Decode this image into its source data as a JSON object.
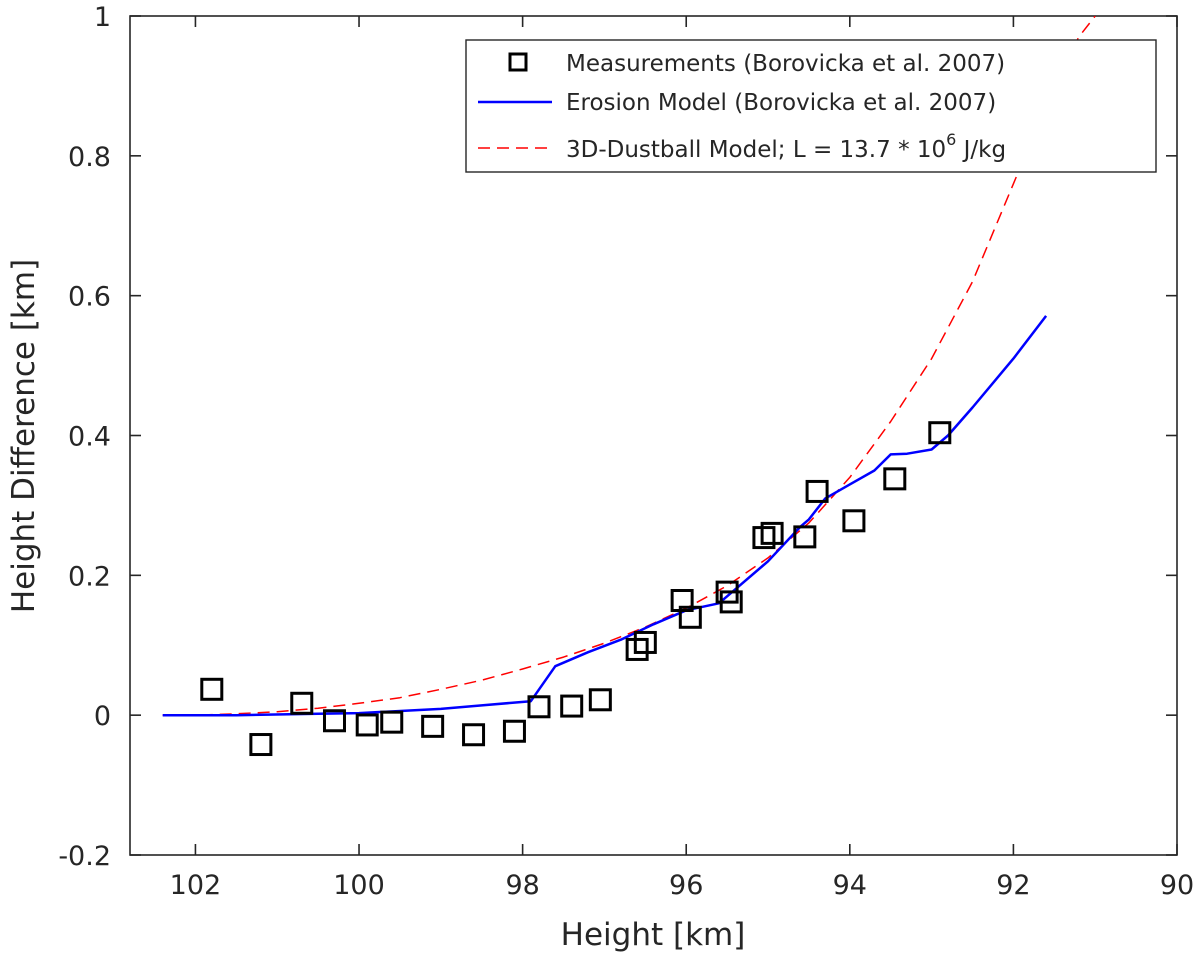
{
  "chart_data": {
    "type": "line",
    "title": "",
    "xlabel": "Height [km]",
    "ylabel": "Height Difference [km]",
    "xlim": [
      102.8,
      90
    ],
    "x_reversed": true,
    "ylim": [
      -0.2,
      1.0
    ],
    "grid": false,
    "legend_position": "top-right",
    "xticks": [
      102,
      100,
      98,
      96,
      94,
      92,
      90
    ],
    "yticks": [
      -0.2,
      0,
      0.2,
      0.4,
      0.6,
      0.8,
      1.0
    ],
    "xtick_labels": [
      "102",
      "100",
      "98",
      "96",
      "94",
      "92",
      "90"
    ],
    "ytick_labels": [
      "-0.2",
      "0",
      "0.2",
      "0.4",
      "0.6",
      "0.8",
      "1"
    ],
    "series": [
      {
        "name": "Measurements (Borovicka et al. 2007)",
        "style": "markers",
        "marker": "square",
        "color": "#000000",
        "x": [
          101.8,
          101.2,
          100.7,
          100.3,
          99.9,
          99.6,
          99.1,
          98.6,
          98.1,
          97.8,
          97.4,
          97.05,
          96.6,
          96.5,
          96.05,
          95.95,
          95.5,
          95.45,
          95.05,
          94.95,
          94.55,
          94.4,
          93.95,
          93.45,
          92.9
        ],
        "y": [
          0.037,
          -0.042,
          0.017,
          -0.008,
          -0.014,
          -0.01,
          -0.016,
          -0.028,
          -0.023,
          0.012,
          0.013,
          0.022,
          0.094,
          0.104,
          0.164,
          0.14,
          0.176,
          0.162,
          0.254,
          0.26,
          0.255,
          0.32,
          0.278,
          0.338,
          0.404
        ]
      },
      {
        "name": "Erosion Model (Borovicka et al. 2007)",
        "style": "solid",
        "color": "#0000ff",
        "x": [
          102.4,
          101.5,
          100.5,
          100.0,
          99.0,
          98.5,
          97.9,
          97.6,
          97.2,
          96.8,
          96.4,
          96.0,
          95.6,
          95.4,
          95.0,
          94.6,
          94.5,
          94.3,
          94.0,
          93.7,
          93.5,
          93.3,
          93.0,
          92.8,
          92.5,
          92.0,
          91.6
        ],
        "y": [
          0.0,
          0.0,
          0.002,
          0.003,
          0.009,
          0.014,
          0.02,
          0.07,
          0.09,
          0.108,
          0.13,
          0.15,
          0.16,
          0.18,
          0.22,
          0.27,
          0.28,
          0.31,
          0.33,
          0.35,
          0.373,
          0.374,
          0.38,
          0.4,
          0.44,
          0.51,
          0.571
        ]
      },
      {
        "name": "3D-Dustball Model; L = 13.7 * 10^6 J/kg",
        "style": "dashed",
        "color": "#ff0000",
        "x": [
          102.4,
          102.0,
          101.5,
          101.0,
          100.5,
          100.0,
          99.5,
          99.0,
          98.5,
          98.0,
          97.5,
          97.0,
          96.5,
          96.0,
          95.5,
          95.0,
          94.5,
          94.0,
          93.5,
          93.0,
          92.5,
          92.0,
          91.5,
          91.2,
          91.0
        ],
        "y": [
          0.0,
          0.0,
          0.002,
          0.005,
          0.01,
          0.017,
          0.025,
          0.037,
          0.05,
          0.066,
          0.083,
          0.103,
          0.126,
          0.153,
          0.185,
          0.225,
          0.275,
          0.34,
          0.42,
          0.51,
          0.62,
          0.76,
          0.9,
          0.97,
          1.0
        ]
      }
    ],
    "legend": {
      "entries": [
        {
          "label": "Measurements (Borovicka et al. 2007)"
        },
        {
          "label": "Erosion Model (Borovicka et al. 2007)"
        },
        {
          "label_main": "3D-Dustball Model; L = 13.7 * 10",
          "label_sup": "6",
          "label_tail": " J/kg"
        }
      ]
    }
  }
}
